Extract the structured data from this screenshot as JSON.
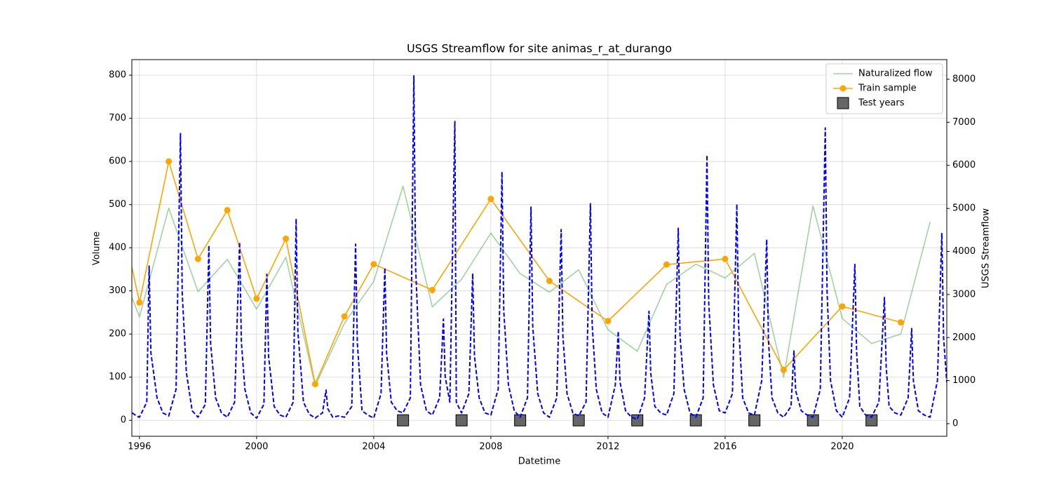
{
  "chart_data": {
    "type": "line",
    "title": "USGS Streamflow for site animas_r_at_durango",
    "x_label": "Datetime",
    "y_label": "Volume",
    "y2_label": "USGS Streamflow",
    "xlim": [
      1995.74,
      2023.57
    ],
    "xticks": [
      1996,
      2000,
      2004,
      2008,
      2012,
      2016,
      2020
    ],
    "ylim": [
      -37,
      836
    ],
    "yticks": [
      0,
      100,
      200,
      300,
      400,
      500,
      600,
      700,
      800
    ],
    "y2lim": [
      -293,
      8456
    ],
    "y2ticks": [
      0,
      1000,
      2000,
      3000,
      4000,
      5000,
      6000,
      7000,
      8000
    ],
    "grid": true,
    "legend_loc": "upper right",
    "series": [
      {
        "name": "Naturalized flow",
        "color": "#2ca02c",
        "opacity": 0.45,
        "linestyle": "solid",
        "marker": "none",
        "x": [
          1995,
          1996,
          1997,
          1998,
          1999,
          2000,
          2001,
          2002,
          2003,
          2004,
          2005,
          2006,
          2007,
          2008,
          2009,
          2010,
          2011,
          2012,
          2013,
          2014,
          2015,
          2016,
          2017,
          2018,
          2019,
          2020,
          2021,
          2022,
          2023
        ],
        "values": [
          413,
          240,
          492,
          298,
          373,
          258,
          378,
          80,
          225,
          322,
          543,
          263,
          327,
          434,
          340,
          297,
          349,
          210,
          160,
          315,
          362,
          330,
          387,
          100,
          497,
          236,
          178,
          200,
          460
        ]
      },
      {
        "name": "Train sample",
        "color": "#ffa500",
        "opacity": 1,
        "linestyle": "solid",
        "marker": "circle",
        "x": [
          1995,
          1996,
          1997,
          1998,
          1999,
          2000,
          2001,
          2002,
          2003,
          2004,
          2006,
          2008,
          2010,
          2012,
          2014,
          2016,
          2018,
          2020,
          2022
        ],
        "values": [
          590,
          273,
          600,
          374,
          487,
          282,
          421,
          84,
          241,
          362,
          302,
          513,
          323,
          230,
          361,
          374,
          117,
          264,
          227
        ]
      },
      {
        "name": "Test years",
        "color": "#666666",
        "opacity": 1,
        "linestyle": "none",
        "marker": "square",
        "x": [
          2005,
          2007,
          2009,
          2011,
          2013,
          2015,
          2017,
          2019,
          2021
        ],
        "values": [
          0,
          0,
          0,
          0,
          0,
          0,
          0,
          0,
          0
        ]
      },
      {
        "color": "#0000ff",
        "opacity": 1,
        "linestyle": "dashed",
        "marker": "none",
        "axis": "y2",
        "x": [
          1995.75,
          1995.9,
          1996.0,
          1996.25,
          1996.33,
          1996.39,
          1996.6,
          1996.8,
          1997.0,
          1997.25,
          1997.4,
          1997.46,
          1997.6,
          1997.8,
          1998.0,
          1998.25,
          1998.37,
          1998.43,
          1998.6,
          1998.8,
          1999.0,
          1999.25,
          1999.42,
          1999.48,
          1999.6,
          1999.8,
          2000.0,
          2000.25,
          2000.35,
          2000.41,
          2000.6,
          2000.8,
          2001.0,
          2001.25,
          2001.35,
          2001.41,
          2001.6,
          2001.8,
          2002.0,
          2002.25,
          2002.37,
          2002.43,
          2002.6,
          2002.8,
          2003.0,
          2003.25,
          2003.38,
          2003.44,
          2003.6,
          2003.8,
          2004.0,
          2004.25,
          2004.38,
          2004.44,
          2004.6,
          2004.8,
          2005.0,
          2005.25,
          2005.37,
          2005.43,
          2005.6,
          2005.8,
          2006.0,
          2006.25,
          2006.38,
          2006.44,
          2006.6,
          2006.77,
          2006.82,
          2007.0,
          2007.25,
          2007.38,
          2007.44,
          2007.6,
          2007.8,
          2008.0,
          2008.25,
          2008.38,
          2008.44,
          2008.6,
          2008.8,
          2009.0,
          2009.25,
          2009.37,
          2009.43,
          2009.6,
          2009.8,
          2010.0,
          2010.25,
          2010.4,
          2010.46,
          2010.6,
          2010.8,
          2011.0,
          2011.25,
          2011.4,
          2011.46,
          2011.6,
          2011.8,
          2012.0,
          2012.25,
          2012.35,
          2012.41,
          2012.6,
          2012.8,
          2013.0,
          2013.25,
          2013.4,
          2013.46,
          2013.6,
          2013.8,
          2014.0,
          2014.25,
          2014.4,
          2014.46,
          2014.6,
          2014.8,
          2015.0,
          2015.25,
          2015.38,
          2015.44,
          2015.6,
          2015.8,
          2016.0,
          2016.25,
          2016.4,
          2016.46,
          2016.6,
          2016.8,
          2017.0,
          2017.25,
          2017.42,
          2017.48,
          2017.6,
          2017.8,
          2018.0,
          2018.25,
          2018.35,
          2018.41,
          2018.6,
          2018.8,
          2019.0,
          2019.25,
          2019.42,
          2019.48,
          2019.6,
          2019.8,
          2020.0,
          2020.25,
          2020.43,
          2020.49,
          2020.6,
          2020.8,
          2021.0,
          2021.25,
          2021.44,
          2021.5,
          2021.6,
          2021.8,
          2022.0,
          2022.25,
          2022.37,
          2022.43,
          2022.6,
          2022.8,
          2023.0,
          2023.25,
          2023.4,
          2023.46,
          2023.57
        ],
        "values": [
          250,
          180,
          150,
          500,
          3660,
          1650,
          600,
          250,
          180,
          800,
          6740,
          3030,
          1200,
          300,
          150,
          450,
          4140,
          1860,
          600,
          250,
          150,
          500,
          4220,
          1900,
          800,
          250,
          130,
          450,
          3470,
          1560,
          400,
          200,
          150,
          500,
          4760,
          2140,
          500,
          220,
          130,
          250,
          780,
          350,
          150,
          180,
          150,
          400,
          4170,
          1880,
          300,
          200,
          130,
          700,
          3620,
          1630,
          500,
          300,
          250,
          600,
          8080,
          3640,
          900,
          300,
          200,
          600,
          2430,
          1090,
          500,
          7020,
          500,
          250,
          700,
          3490,
          1570,
          600,
          250,
          200,
          800,
          5850,
          2630,
          900,
          300,
          150,
          600,
          5030,
          2260,
          700,
          250,
          150,
          600,
          4510,
          2030,
          700,
          250,
          180,
          500,
          5110,
          2300,
          800,
          250,
          150,
          900,
          2150,
          970,
          300,
          150,
          100,
          600,
          2610,
          1170,
          400,
          250,
          200,
          700,
          4540,
          2040,
          800,
          250,
          150,
          600,
          6240,
          2810,
          900,
          300,
          250,
          700,
          5100,
          2300,
          600,
          250,
          200,
          1000,
          4280,
          1930,
          600,
          250,
          150,
          400,
          1690,
          760,
          300,
          200,
          150,
          800,
          6870,
          3090,
          1000,
          300,
          150,
          600,
          3700,
          1670,
          400,
          200,
          150,
          500,
          2930,
          1320,
          400,
          250,
          200,
          600,
          2210,
          990,
          300,
          200,
          150,
          1000,
          4430,
          2000,
          960
        ]
      }
    ]
  }
}
